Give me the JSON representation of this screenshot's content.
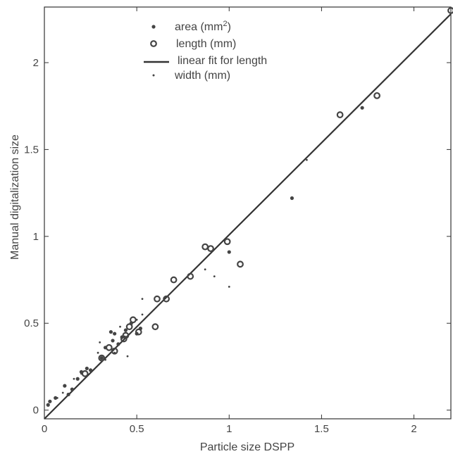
{
  "chart_data": {
    "type": "scatter",
    "title": "",
    "xlabel": "Particle size DSPP",
    "ylabel": "Manual digitalization size",
    "xlim": [
      0,
      2.2
    ],
    "ylim": [
      -0.05,
      2.32
    ],
    "xticks": [
      0,
      0.5,
      1,
      1.5,
      2
    ],
    "xtick_labels": [
      "0",
      "0.5",
      "1",
      "1.5",
      "2"
    ],
    "yticks": [
      0,
      0.5,
      1,
      1.5,
      2
    ],
    "ytick_labels": [
      "0",
      "0.5",
      "1",
      "1.5",
      "2"
    ],
    "grid": false,
    "legend_position": "top-center",
    "colors": {
      "ink": "#444444",
      "axis": "#333333"
    },
    "legend": [
      {
        "id": "area",
        "base": "area (mm",
        "sup": "2",
        "tail": ")"
      },
      {
        "id": "length",
        "text": "length (mm)"
      },
      {
        "id": "fit",
        "text": "linear fit for length"
      },
      {
        "id": "width",
        "text": "width (mm)"
      }
    ],
    "series": [
      {
        "name": "area (mm2)",
        "marker": "filled-dot",
        "points": [
          [
            0.02,
            0.03
          ],
          [
            0.03,
            0.05
          ],
          [
            0.06,
            0.07
          ],
          [
            0.11,
            0.14
          ],
          [
            0.13,
            0.09
          ],
          [
            0.15,
            0.12
          ],
          [
            0.18,
            0.18
          ],
          [
            0.2,
            0.22
          ],
          [
            0.23,
            0.24
          ],
          [
            0.25,
            0.23
          ],
          [
            0.31,
            0.3
          ],
          [
            0.33,
            0.36
          ],
          [
            0.36,
            0.45
          ],
          [
            0.37,
            0.4
          ],
          [
            0.38,
            0.44
          ],
          [
            0.4,
            0.38
          ],
          [
            0.42,
            0.42
          ],
          [
            0.44,
            0.46
          ],
          [
            0.47,
            0.5
          ],
          [
            0.5,
            0.44
          ],
          [
            0.52,
            0.47
          ],
          [
            1.0,
            0.91
          ],
          [
            1.34,
            1.22
          ],
          [
            1.72,
            1.74
          ]
        ]
      },
      {
        "name": "length (mm)",
        "marker": "open-circle",
        "points": [
          [
            0.22,
            0.21
          ],
          [
            0.31,
            0.3
          ],
          [
            0.35,
            0.36
          ],
          [
            0.38,
            0.34
          ],
          [
            0.43,
            0.41
          ],
          [
            0.44,
            0.43
          ],
          [
            0.46,
            0.48
          ],
          [
            0.48,
            0.52
          ],
          [
            0.51,
            0.45
          ],
          [
            0.6,
            0.48
          ],
          [
            0.61,
            0.64
          ],
          [
            0.66,
            0.64
          ],
          [
            0.7,
            0.75
          ],
          [
            0.79,
            0.77
          ],
          [
            0.87,
            0.94
          ],
          [
            0.9,
            0.93
          ],
          [
            0.99,
            0.97
          ],
          [
            1.06,
            0.84
          ],
          [
            1.6,
            1.7
          ],
          [
            1.8,
            1.81
          ],
          [
            2.2,
            2.3
          ]
        ]
      },
      {
        "name": "width (mm)",
        "marker": "small-dot",
        "points": [
          [
            0.07,
            0.07
          ],
          [
            0.1,
            0.1
          ],
          [
            0.16,
            0.18
          ],
          [
            0.2,
            0.21
          ],
          [
            0.29,
            0.33
          ],
          [
            0.3,
            0.39
          ],
          [
            0.33,
            0.29
          ],
          [
            0.38,
            0.33
          ],
          [
            0.41,
            0.48
          ],
          [
            0.45,
            0.31
          ],
          [
            0.5,
            0.52
          ],
          [
            0.53,
            0.55
          ],
          [
            0.53,
            0.64
          ],
          [
            0.87,
            0.81
          ],
          [
            0.92,
            0.77
          ],
          [
            1.0,
            0.71
          ],
          [
            1.42,
            1.44
          ]
        ]
      }
    ],
    "fit_line": {
      "name": "linear fit for length",
      "x": [
        0,
        2.2
      ],
      "y": [
        -0.05,
        2.28
      ]
    }
  }
}
